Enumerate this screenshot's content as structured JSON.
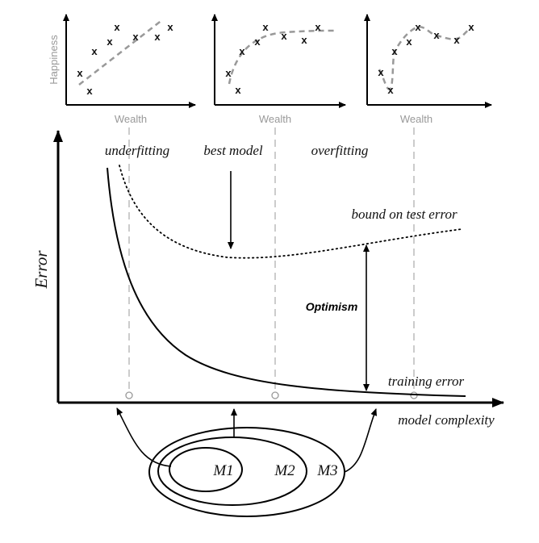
{
  "top_panels": [
    {
      "xlabel": "Wealth",
      "ylabel": "Happiness",
      "marker": "x"
    },
    {
      "xlabel": "Wealth",
      "ylabel": "",
      "marker": "x"
    },
    {
      "xlabel": "Wealth",
      "ylabel": "",
      "marker": "x"
    }
  ],
  "main": {
    "yaxis_label": "Error",
    "xaxis_label": "model complexity",
    "regions": {
      "underfitting": "underfitting",
      "best_model": "best model",
      "overfitting": "overfitting"
    },
    "bound_label": "bound on test error",
    "training_label": "training error",
    "optimism_label": "Optimism"
  },
  "models": {
    "m1": "M1",
    "m2": "M2",
    "m3": "M3"
  },
  "colors": {
    "axis": "#000000",
    "dashed_fit": "#999999",
    "guide_lines": "#aaaaaa"
  }
}
